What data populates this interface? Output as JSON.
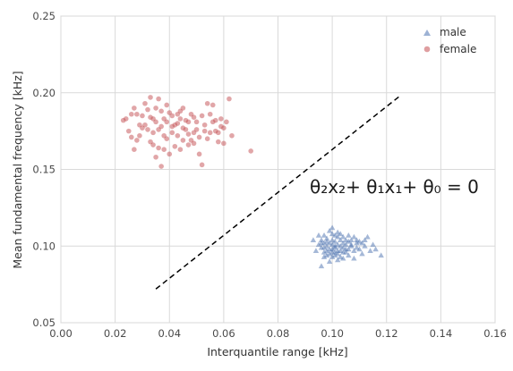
{
  "chart_data": {
    "type": "scatter",
    "title": "",
    "xlabel": "Interquantile range [kHz]",
    "ylabel": "Mean fundamental frequency [kHz]",
    "xlim": [
      0.0,
      0.16
    ],
    "ylim": [
      0.05,
      0.25
    ],
    "x_ticks": [
      "0.00",
      "0.02",
      "0.04",
      "0.06",
      "0.08",
      "0.10",
      "0.12",
      "0.14",
      "0.16"
    ],
    "y_ticks": [
      "0.05",
      "0.10",
      "0.15",
      "0.20",
      "0.25"
    ],
    "grid": true,
    "legend_position": "top-right",
    "annotation": "θ₂x₂+ θ₁x₁+ θ₀ = 0",
    "decision_boundary": {
      "style": "dashed",
      "color": "#000000",
      "from": [
        0.035,
        0.072
      ],
      "to": [
        0.125,
        0.198
      ]
    },
    "series": [
      {
        "name": "male",
        "marker": "triangle",
        "color": "#4c72b0",
        "points": [
          [
            0.096,
            0.087
          ],
          [
            0.097,
            0.093
          ],
          [
            0.098,
            0.097
          ],
          [
            0.099,
            0.102
          ],
          [
            0.1,
            0.104
          ],
          [
            0.101,
            0.099
          ],
          [
            0.102,
            0.095
          ],
          [
            0.103,
            0.1
          ],
          [
            0.104,
            0.106
          ],
          [
            0.105,
            0.098
          ],
          [
            0.106,
            0.094
          ],
          [
            0.107,
            0.101
          ],
          [
            0.108,
            0.097
          ],
          [
            0.1,
            0.108
          ],
          [
            0.099,
            0.09
          ],
          [
            0.101,
            0.103
          ],
          [
            0.098,
            0.105
          ],
          [
            0.102,
            0.109
          ],
          [
            0.103,
            0.093
          ],
          [
            0.104,
            0.096
          ],
          [
            0.097,
            0.099
          ],
          [
            0.095,
            0.101
          ],
          [
            0.096,
            0.104
          ],
          [
            0.109,
            0.099
          ],
          [
            0.11,
            0.103
          ],
          [
            0.111,
            0.095
          ],
          [
            0.112,
            0.1
          ],
          [
            0.113,
            0.106
          ],
          [
            0.1,
            0.096
          ],
          [
            0.101,
            0.094
          ],
          [
            0.102,
            0.091
          ],
          [
            0.103,
            0.097
          ],
          [
            0.104,
            0.102
          ],
          [
            0.105,
            0.104
          ],
          [
            0.106,
            0.107
          ],
          [
            0.099,
            0.11
          ],
          [
            0.1,
            0.112
          ],
          [
            0.098,
            0.1
          ],
          [
            0.097,
            0.102
          ],
          [
            0.094,
            0.097
          ],
          [
            0.093,
            0.104
          ],
          [
            0.095,
            0.107
          ],
          [
            0.108,
            0.092
          ],
          [
            0.107,
            0.104
          ],
          [
            0.106,
            0.098
          ],
          [
            0.105,
            0.101
          ],
          [
            0.104,
            0.099
          ],
          [
            0.103,
            0.104
          ],
          [
            0.102,
            0.101
          ],
          [
            0.101,
            0.107
          ],
          [
            0.1,
            0.101
          ],
          [
            0.099,
            0.098
          ],
          [
            0.098,
            0.094
          ],
          [
            0.097,
            0.096
          ],
          [
            0.096,
            0.099
          ],
          [
            0.108,
            0.106
          ],
          [
            0.109,
            0.104
          ],
          [
            0.11,
            0.098
          ],
          [
            0.111,
            0.102
          ],
          [
            0.114,
            0.097
          ],
          [
            0.116,
            0.098
          ],
          [
            0.118,
            0.094
          ],
          [
            0.115,
            0.101
          ],
          [
            0.112,
            0.104
          ],
          [
            0.102,
            0.097
          ],
          [
            0.101,
            0.1
          ],
          [
            0.1,
            0.098
          ],
          [
            0.099,
            0.095
          ],
          [
            0.103,
            0.108
          ],
          [
            0.105,
            0.096
          ],
          [
            0.106,
            0.103
          ],
          [
            0.098,
            0.103
          ],
          [
            0.097,
            0.107
          ],
          [
            0.1,
            0.093
          ],
          [
            0.104,
            0.092
          ],
          [
            0.107,
            0.1
          ],
          [
            0.109,
            0.102
          ],
          [
            0.096,
            0.102
          ],
          [
            0.101,
            0.096
          ],
          [
            0.102,
            0.106
          ]
        ]
      },
      {
        "name": "female",
        "marker": "circle",
        "color": "#c44e52",
        "points": [
          [
            0.023,
            0.182
          ],
          [
            0.025,
            0.175
          ],
          [
            0.026,
            0.171
          ],
          [
            0.027,
            0.163
          ],
          [
            0.028,
            0.186
          ],
          [
            0.029,
            0.179
          ],
          [
            0.03,
            0.185
          ],
          [
            0.031,
            0.193
          ],
          [
            0.032,
            0.176
          ],
          [
            0.033,
            0.168
          ],
          [
            0.034,
            0.183
          ],
          [
            0.035,
            0.19
          ],
          [
            0.036,
            0.196
          ],
          [
            0.037,
            0.178
          ],
          [
            0.038,
            0.172
          ],
          [
            0.039,
            0.181
          ],
          [
            0.04,
            0.187
          ],
          [
            0.041,
            0.174
          ],
          [
            0.042,
            0.165
          ],
          [
            0.043,
            0.18
          ],
          [
            0.044,
            0.188
          ],
          [
            0.045,
            0.177
          ],
          [
            0.046,
            0.182
          ],
          [
            0.047,
            0.173
          ],
          [
            0.048,
            0.169
          ],
          [
            0.049,
            0.184
          ],
          [
            0.05,
            0.176
          ],
          [
            0.051,
            0.171
          ],
          [
            0.052,
            0.185
          ],
          [
            0.053,
            0.179
          ],
          [
            0.054,
            0.193
          ],
          [
            0.055,
            0.174
          ],
          [
            0.056,
            0.181
          ],
          [
            0.057,
            0.175
          ],
          [
            0.058,
            0.168
          ],
          [
            0.059,
            0.183
          ],
          [
            0.06,
            0.177
          ],
          [
            0.061,
            0.181
          ],
          [
            0.062,
            0.196
          ],
          [
            0.063,
            0.172
          ],
          [
            0.07,
            0.162
          ],
          [
            0.024,
            0.183
          ],
          [
            0.026,
            0.186
          ],
          [
            0.028,
            0.169
          ],
          [
            0.03,
            0.177
          ],
          [
            0.032,
            0.189
          ],
          [
            0.033,
            0.197
          ],
          [
            0.034,
            0.166
          ],
          [
            0.035,
            0.158
          ],
          [
            0.036,
            0.164
          ],
          [
            0.037,
            0.152
          ],
          [
            0.036,
            0.176
          ],
          [
            0.038,
            0.183
          ],
          [
            0.039,
            0.17
          ],
          [
            0.04,
            0.16
          ],
          [
            0.041,
            0.185
          ],
          [
            0.042,
            0.179
          ],
          [
            0.043,
            0.172
          ],
          [
            0.044,
            0.163
          ],
          [
            0.045,
            0.19
          ],
          [
            0.046,
            0.176
          ],
          [
            0.047,
            0.181
          ],
          [
            0.048,
            0.186
          ],
          [
            0.049,
            0.167
          ],
          [
            0.05,
            0.181
          ],
          [
            0.051,
            0.16
          ],
          [
            0.052,
            0.153
          ],
          [
            0.053,
            0.175
          ],
          [
            0.054,
            0.17
          ],
          [
            0.055,
            0.186
          ],
          [
            0.056,
            0.192
          ],
          [
            0.057,
            0.182
          ],
          [
            0.058,
            0.174
          ],
          [
            0.059,
            0.178
          ],
          [
            0.06,
            0.167
          ],
          [
            0.031,
            0.179
          ],
          [
            0.029,
            0.172
          ],
          [
            0.027,
            0.19
          ],
          [
            0.033,
            0.184
          ],
          [
            0.035,
            0.181
          ],
          [
            0.037,
            0.188
          ],
          [
            0.039,
            0.192
          ],
          [
            0.041,
            0.178
          ],
          [
            0.043,
            0.186
          ],
          [
            0.045,
            0.169
          ],
          [
            0.047,
            0.166
          ],
          [
            0.049,
            0.174
          ],
          [
            0.034,
            0.174
          ],
          [
            0.038,
            0.163
          ],
          [
            0.044,
            0.183
          ]
        ]
      }
    ]
  }
}
